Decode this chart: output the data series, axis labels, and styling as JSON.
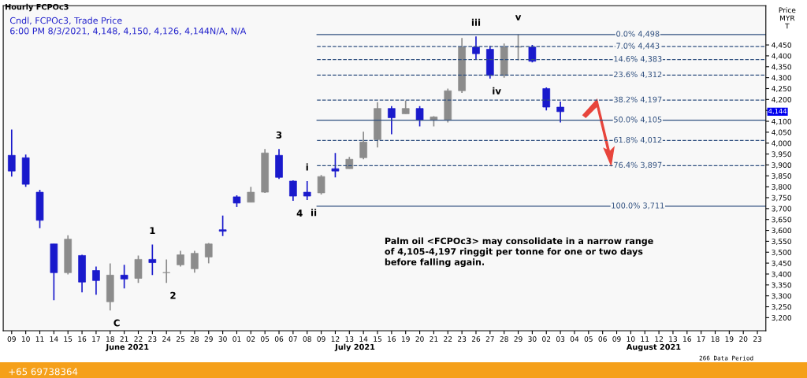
{
  "chart_data": {
    "type": "candlestick",
    "title": "Hourly FCPOc3",
    "subtitle": "Cndl, FCPOc3, Trade Price\n6:00 PM 8/3/2021, 4,148, 4,150, 4,126, 4,144N/A, N/A",
    "ylabel": "Price\nMYR\nT",
    "categories": [
      "09",
      "10",
      "11",
      "14",
      "15",
      "16",
      "17",
      "18",
      "21",
      "22",
      "23",
      "24",
      "25",
      "28",
      "29",
      "30",
      "01",
      "02",
      "05",
      "06",
      "07",
      "08",
      "09",
      "12",
      "13",
      "14",
      "15",
      "16",
      "19",
      "20",
      "21",
      "22",
      "23",
      "26",
      "27",
      "28",
      "29",
      "30",
      "02",
      "03",
      "04",
      "05",
      "06",
      "09",
      "10",
      "11",
      "12",
      "13",
      "16",
      "17",
      "18",
      "19",
      "20",
      "23"
    ],
    "ohlc": [
      [
        3944,
        4062,
        3847,
        3872
      ],
      [
        3933,
        3948,
        3800,
        3811
      ],
      [
        3775,
        3786,
        3610,
        3646
      ],
      [
        3538,
        3538,
        3280,
        3406
      ],
      [
        3406,
        3578,
        3398,
        3560
      ],
      [
        3485,
        3488,
        3316,
        3363
      ],
      [
        3416,
        3434,
        3305,
        3370
      ],
      [
        3273,
        3449,
        3233,
        3395
      ],
      [
        3395,
        3442,
        3334,
        3377
      ],
      [
        3380,
        3485,
        3359,
        3467
      ],
      [
        3467,
        3535,
        3395,
        3452
      ],
      [
        3406,
        3467,
        3359,
        3406
      ],
      [
        3442,
        3506,
        3434,
        3488
      ],
      [
        3424,
        3506,
        3406,
        3495
      ],
      [
        3478,
        3542,
        3449,
        3538
      ],
      [
        3603,
        3668,
        3574,
        3596
      ],
      [
        3754,
        3761,
        3707,
        3725
      ],
      [
        3729,
        3800,
        3729,
        3775
      ],
      [
        3775,
        3973,
        3772,
        3955
      ],
      [
        3944,
        3973,
        3836,
        3843
      ],
      [
        3826,
        3829,
        3736,
        3757
      ],
      [
        3775,
        3826,
        3739,
        3757
      ],
      [
        3772,
        3854,
        3764,
        3847
      ],
      [
        3883,
        3955,
        3843,
        3872
      ],
      [
        3883,
        3937,
        3883,
        3926
      ],
      [
        3933,
        4052,
        3926,
        4005
      ],
      [
        4016,
        4188,
        3980,
        4159
      ],
      [
        4159,
        4170,
        4041,
        4116
      ],
      [
        4134,
        4195,
        4134,
        4159
      ],
      [
        4159,
        4170,
        4077,
        4105
      ],
      [
        4105,
        4124,
        4077,
        4120
      ],
      [
        4105,
        4250,
        4095,
        4240
      ],
      [
        4240,
        4482,
        4230,
        4440
      ],
      [
        4440,
        4489,
        4385,
        4410
      ],
      [
        4430,
        4446,
        4296,
        4310
      ],
      [
        4310,
        4457,
        4300,
        4440
      ],
      [
        4440,
        4498,
        4380,
        4440
      ],
      [
        4440,
        4450,
        4370,
        4375
      ],
      [
        4250,
        4255,
        4150,
        4165
      ],
      [
        4165,
        4190,
        4095,
        4144
      ],
      null,
      null,
      null,
      null,
      null,
      null,
      null,
      null,
      null,
      null,
      null,
      null,
      null,
      null
    ],
    "ylim": [
      3140,
      4630
    ],
    "yticks": [
      {
        "value": 3200,
        "label": "3,200"
      },
      {
        "value": 3250,
        "label": "3,250"
      },
      {
        "value": 3300,
        "label": "3,300"
      },
      {
        "value": 3350,
        "label": "3,350"
      },
      {
        "value": 3400,
        "label": "3,400"
      },
      {
        "value": 3450,
        "label": "3,450"
      },
      {
        "value": 3500,
        "label": "3,500"
      },
      {
        "value": 3550,
        "label": "3,550"
      },
      {
        "value": 3600,
        "label": "3,600"
      },
      {
        "value": 3650,
        "label": "3,650"
      },
      {
        "value": 3700,
        "label": "3,700"
      },
      {
        "value": 3750,
        "label": "3,750"
      },
      {
        "value": 3800,
        "label": "3,800"
      },
      {
        "value": 3850,
        "label": "3,850"
      },
      {
        "value": 3900,
        "label": "3,900"
      },
      {
        "value": 3950,
        "label": "3,950"
      },
      {
        "value": 4000,
        "label": "4,000"
      },
      {
        "value": 4050,
        "label": "4,050"
      },
      {
        "value": 4100,
        "label": "4,100"
      },
      {
        "value": 4150,
        "label": null
      },
      {
        "value": 4200,
        "label": "4,200"
      },
      {
        "value": 4250,
        "label": "4,250"
      },
      {
        "value": 4300,
        "label": "4,300"
      },
      {
        "value": 4350,
        "label": "4,350"
      },
      {
        "value": 4400,
        "label": "4,400"
      },
      {
        "value": 4450,
        "label": "4,450"
      }
    ],
    "ref_lines": [
      {
        "axis": "y",
        "value": 4498,
        "label": "0.0% 4,498",
        "color": "#2f4f7f",
        "line_style": "solid"
      },
      {
        "axis": "y",
        "value": 4443,
        "label": "7.0% 4,443",
        "color": "#2f4f7f",
        "line_style": "dashed"
      },
      {
        "axis": "y",
        "value": 4383,
        "label": "14.6% 4,383",
        "color": "#2f4f7f",
        "line_style": "dashed"
      },
      {
        "axis": "y",
        "value": 4312,
        "label": "23.6% 4,312",
        "color": "#2f4f7f",
        "line_style": "dashed"
      },
      {
        "axis": "y",
        "value": 4197,
        "label": "38.2% 4,197",
        "color": "#2f4f7f",
        "line_style": "dashed"
      },
      {
        "axis": "y",
        "value": 4105,
        "label": "50.0% 4,105",
        "color": "#2f4f7f",
        "line_style": "solid"
      },
      {
        "axis": "y",
        "value": 4012,
        "label": "61.8% 4,012",
        "color": "#2f4f7f",
        "line_style": "dashed"
      },
      {
        "axis": "y",
        "value": 3897,
        "label": "76.4% 3,897",
        "color": "#2f4f7f",
        "line_style": "dashed"
      },
      {
        "axis": "y",
        "value": 3711,
        "label": "100.0% 3,711",
        "color": "#2f4f7f",
        "line_style": "solid"
      }
    ],
    "annotations": [
      "Palm oil <FCPOc3> may consolidate in a narrow range\nof 4,105-4,197 ringgit per tonne for one or two days\nbefore falling again.",
      "June 2021",
      "July 2021",
      "August 2021",
      "266 Data Period",
      "+65 69738364",
      "v",
      "4,144",
      {
        "text": "C",
        "x": "18",
        "y": 3233
      },
      {
        "text": "1",
        "x": "23",
        "y": 3535
      },
      {
        "text": "2",
        "x": "24",
        "y": 3359
      },
      {
        "text": "3",
        "x": "06",
        "y": 3973
      },
      {
        "text": "4",
        "x": "07",
        "y": 3736
      },
      {
        "text": "i",
        "x": "08",
        "y": 3826
      },
      {
        "text": "ii",
        "x": "08",
        "y": 3739
      },
      {
        "text": "iii",
        "x": "26",
        "y": 4489
      },
      {
        "text": "iv",
        "x": "27",
        "y": 4296
      }
    ],
    "legend": false,
    "grid": false
  }
}
